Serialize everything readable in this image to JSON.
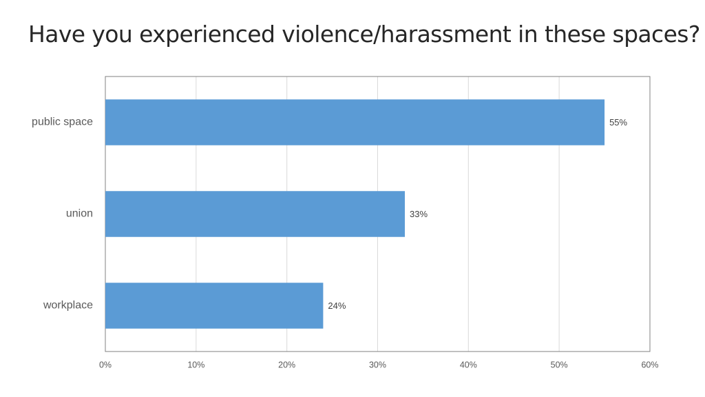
{
  "slide": {
    "title": "Have you experienced violence/harassment in these spaces?"
  },
  "chart_data": {
    "type": "bar",
    "orientation": "horizontal",
    "categories": [
      "public space",
      "union",
      "workplace"
    ],
    "values": [
      55,
      33,
      24
    ],
    "data_labels": [
      "55%",
      "33%",
      "24%"
    ],
    "xlim": [
      0,
      60
    ],
    "x_ticks": [
      0,
      10,
      20,
      30,
      40,
      50,
      60
    ],
    "x_tick_labels": [
      "0%",
      "10%",
      "20%",
      "30%",
      "40%",
      "50%",
      "60%"
    ],
    "grid": true,
    "legend": "none",
    "colors": {
      "bar": "#5B9BD5",
      "gridline": "#D9D9D9",
      "frame": "#808080"
    }
  }
}
